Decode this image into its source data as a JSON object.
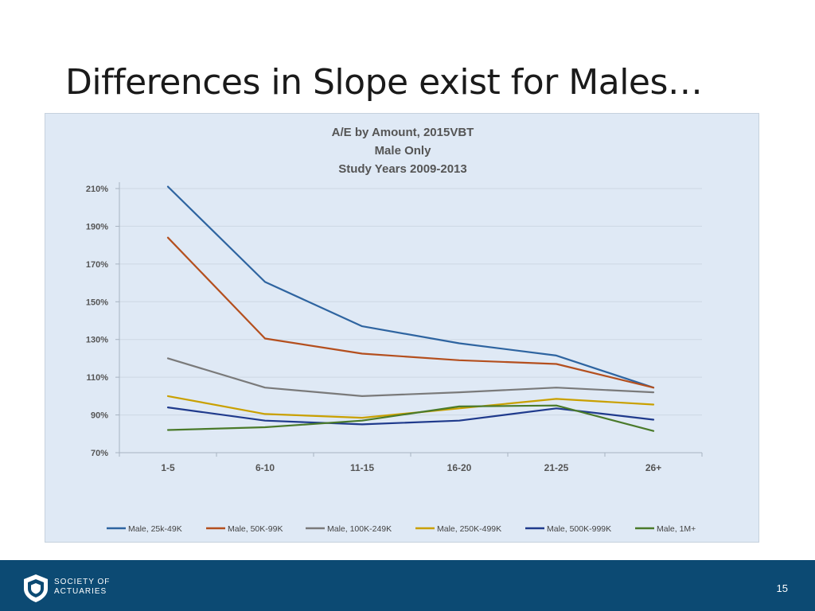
{
  "slide": {
    "title": "Differences in Slope exist for Males…"
  },
  "footer": {
    "org_line1": "SOCIETY OF",
    "org_line2": "ACTUARIES",
    "page_number": "15",
    "logo_icon": "soa-shield-icon"
  },
  "chart_data": {
    "type": "line",
    "title_lines": [
      "A/E by Amount, 2015VBT",
      "Male Only",
      "Study Years 2009-2013"
    ],
    "xlabel": "",
    "ylabel": "",
    "categories": [
      "1-5",
      "6-10",
      "11-15",
      "16-20",
      "21-25",
      "26+"
    ],
    "y_ticks": [
      "70%",
      "90%",
      "110%",
      "130%",
      "150%",
      "170%",
      "190%",
      "210%"
    ],
    "ylim": [
      70,
      210
    ],
    "y_unit": "%",
    "grid": true,
    "legend_position": "bottom",
    "series": [
      {
        "name": "Male, 25k-49K",
        "color": "#2e64a0",
        "values": [
          211,
          160.5,
          137,
          128,
          121.5,
          104.5
        ]
      },
      {
        "name": "Male, 50K-99K",
        "color": "#b44f1e",
        "values": [
          184,
          130.5,
          122.5,
          119,
          117,
          104.5
        ]
      },
      {
        "name": "Male, 100K-249K",
        "color": "#7a7a7a",
        "values": [
          120,
          104.5,
          100,
          102,
          104.5,
          102
        ]
      },
      {
        "name": "Male, 250K-499K",
        "color": "#c9a000",
        "values": [
          100,
          90.5,
          88.5,
          93.5,
          98.5,
          95.5
        ]
      },
      {
        "name": "Male, 500K-999K",
        "color": "#1f3a8c",
        "values": [
          94,
          87,
          85,
          87,
          93.5,
          87.5
        ]
      },
      {
        "name": "Male, 1M+",
        "color": "#4a7a2a",
        "values": [
          82,
          83.5,
          87,
          94.5,
          95,
          81.5
        ]
      }
    ]
  }
}
